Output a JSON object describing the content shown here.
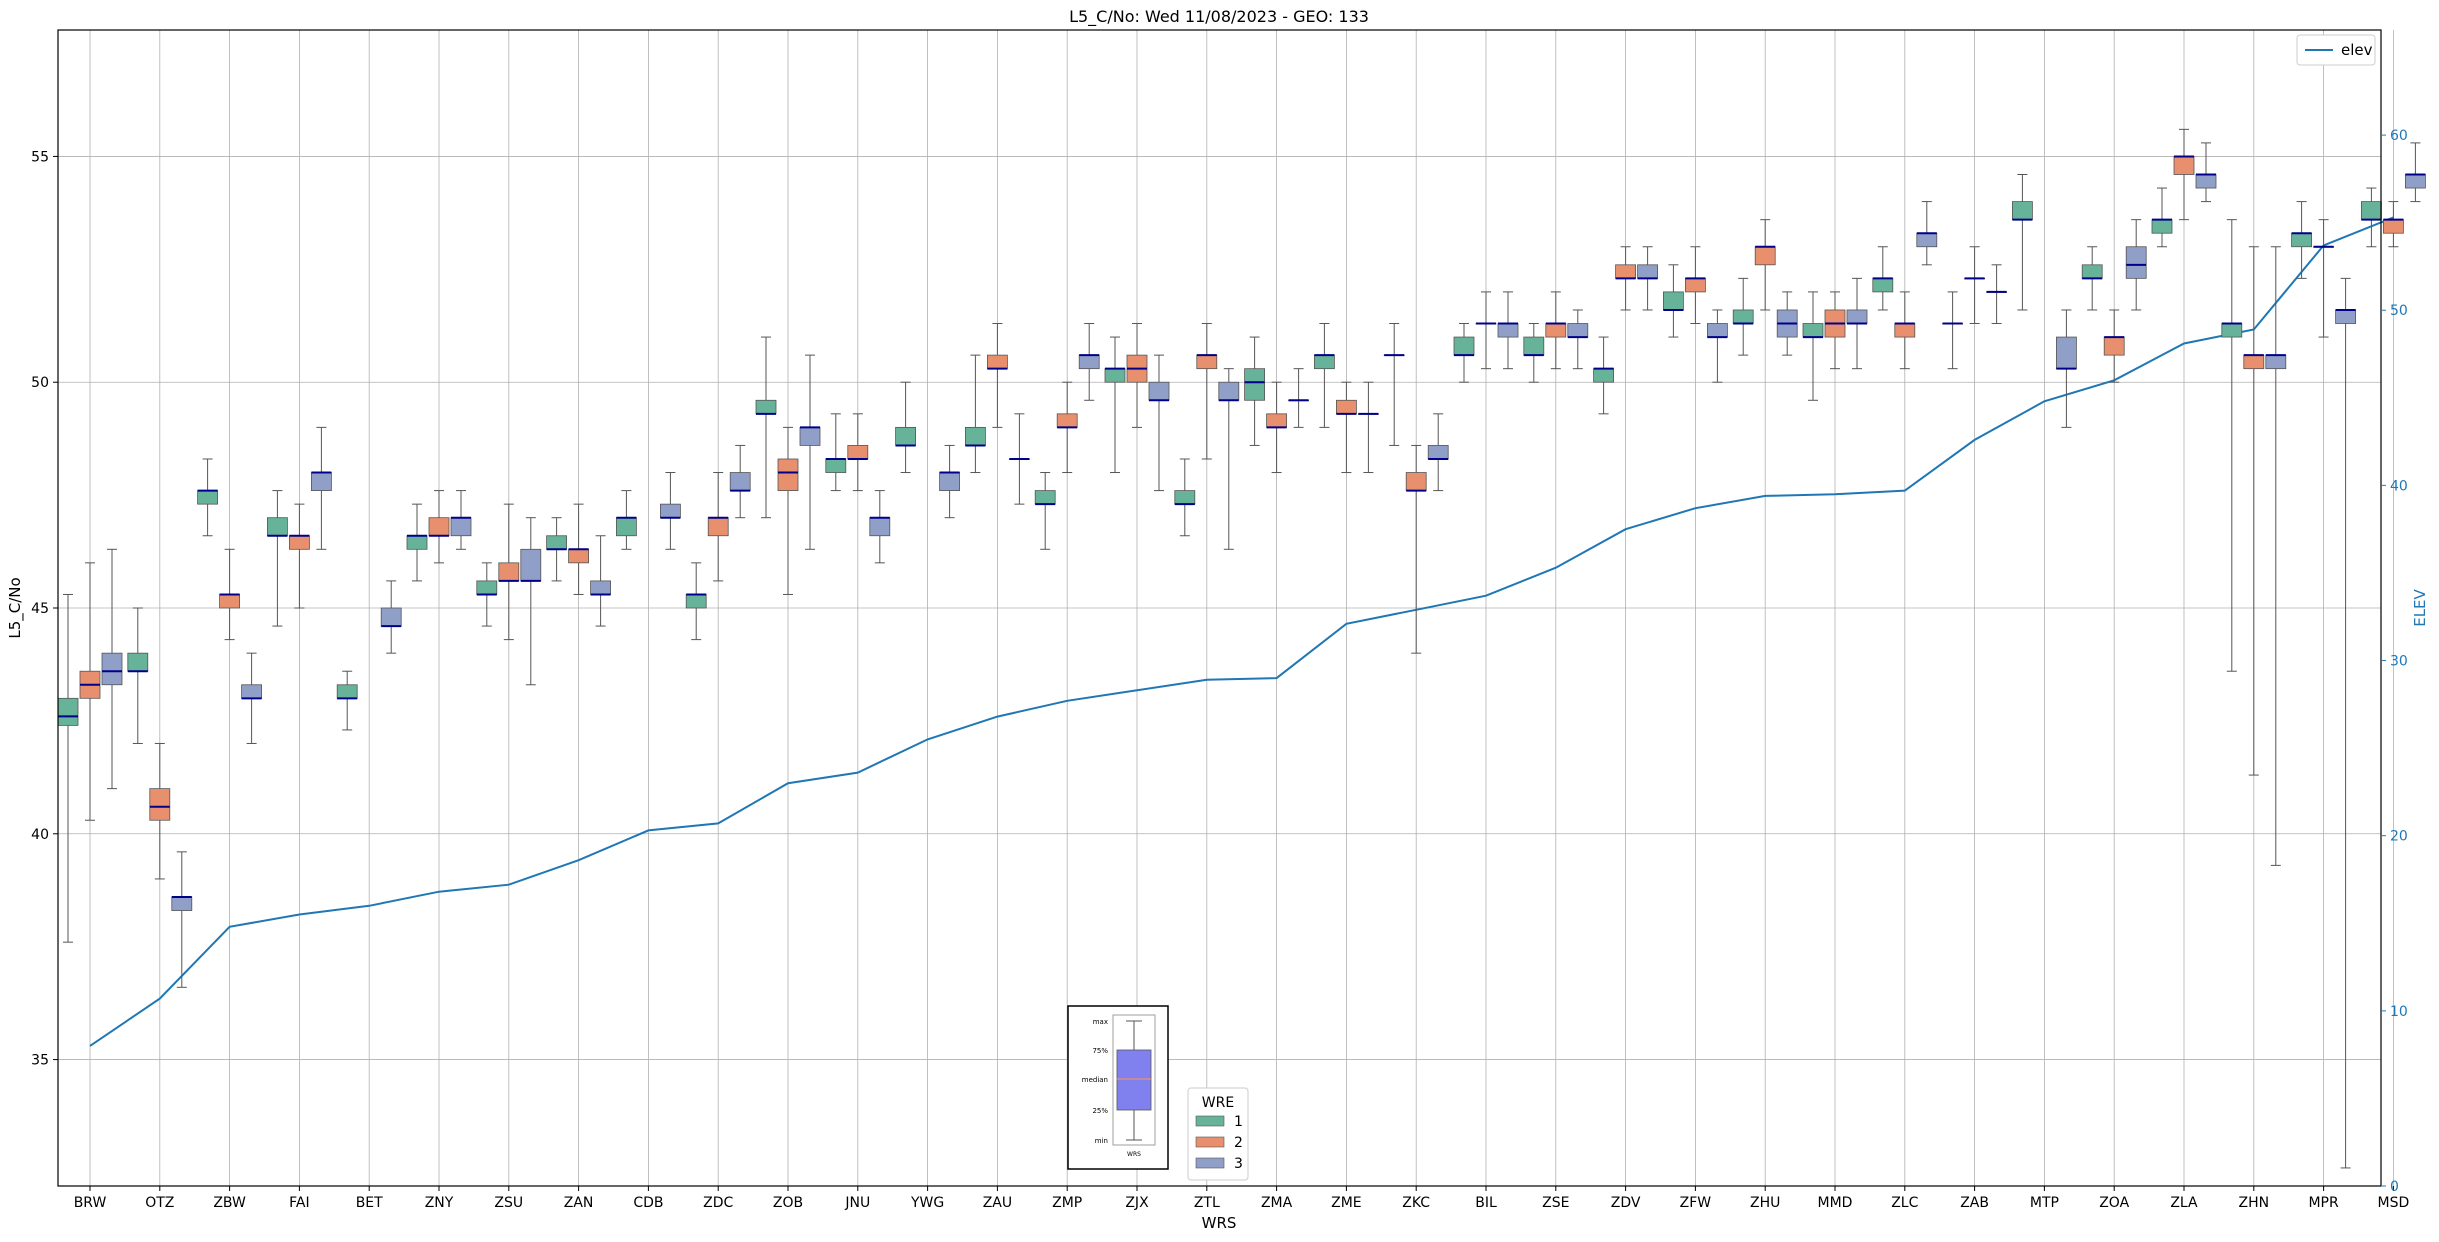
{
  "chart_data": {
    "type": "box",
    "title": "L5_C/No: Wed 11/08/2023 - GEO: 133",
    "xlabel": "WRS",
    "ylabel": "L5_C/No",
    "y2label": "ELEV",
    "ylim": [
      32.2,
      57.8
    ],
    "y2lim": [
      0,
      66
    ],
    "yticks": [
      35,
      40,
      45,
      50,
      55
    ],
    "y2ticks": [
      0,
      10,
      20,
      30,
      40,
      50,
      60
    ],
    "grid": true,
    "categories": [
      "BRW",
      "OTZ",
      "ZBW",
      "FAI",
      "BET",
      "ZNY",
      "ZSU",
      "ZAN",
      "CDB",
      "ZDC",
      "ZOB",
      "JNU",
      "YWG",
      "ZAU",
      "ZMP",
      "ZJX",
      "ZTL",
      "ZMA",
      "ZME",
      "ZKC",
      "BIL",
      "ZSE",
      "ZDV",
      "ZFW",
      "ZHU",
      "MMD",
      "ZLC",
      "ZAB",
      "MTP",
      "ZOA",
      "ZLA",
      "ZHN",
      "MPR",
      "MSD"
    ],
    "hue_legend": {
      "title": "WRE",
      "location": "lower-center",
      "entries": [
        {
          "label": "1",
          "color": "#66b39a"
        },
        {
          "label": "2",
          "color": "#e8906e"
        },
        {
          "label": "3",
          "color": "#8f9fc8"
        }
      ]
    },
    "line_legend": {
      "location": "top-right",
      "label": "elev",
      "color": "#1f77b4"
    },
    "inset_legend": {
      "location": "lower-center",
      "labels": [
        "max",
        "75%",
        "median",
        "25%",
        "min",
        "WRS"
      ]
    },
    "median_color": "#00008b",
    "box_series": [
      {
        "name": "1",
        "color": "#66b39a",
        "boxes": [
          {
            "cat": "BRW",
            "min": 37.6,
            "q1": 42.4,
            "median": 42.6,
            "q3": 43.0,
            "max": 45.3
          },
          {
            "cat": "OTZ",
            "min": 42.0,
            "q1": 43.6,
            "median": 43.6,
            "q3": 44.0,
            "max": 45.0
          },
          {
            "cat": "ZBW",
            "min": 46.6,
            "q1": 47.3,
            "median": 47.6,
            "q3": 47.6,
            "max": 48.3
          },
          {
            "cat": "FAI",
            "min": 44.6,
            "q1": 46.6,
            "median": 46.6,
            "q3": 47.0,
            "max": 47.6
          },
          {
            "cat": "BET",
            "min": 42.3,
            "q1": 43.0,
            "median": 43.0,
            "q3": 43.3,
            "max": 43.6
          },
          {
            "cat": "ZNY",
            "min": 45.6,
            "q1": 46.3,
            "median": 46.6,
            "q3": 46.6,
            "max": 47.3
          },
          {
            "cat": "ZSU",
            "min": 44.6,
            "q1": 45.3,
            "median": 45.3,
            "q3": 45.6,
            "max": 46.0
          },
          {
            "cat": "ZAN",
            "min": 45.6,
            "q1": 46.3,
            "median": 46.3,
            "q3": 46.6,
            "max": 47.0
          },
          {
            "cat": "CDB",
            "min": 46.3,
            "q1": 46.6,
            "median": 47.0,
            "q3": 47.0,
            "max": 47.6
          },
          {
            "cat": "ZDC",
            "min": 44.3,
            "q1": 45.0,
            "median": 45.3,
            "q3": 45.3,
            "max": 46.0
          },
          {
            "cat": "ZOB",
            "min": 47.0,
            "q1": 49.3,
            "median": 49.3,
            "q3": 49.6,
            "max": 51.0
          },
          {
            "cat": "JNU",
            "min": 47.6,
            "q1": 48.0,
            "median": 48.3,
            "q3": 48.3,
            "max": 49.3
          },
          {
            "cat": "YWG",
            "min": 48.0,
            "q1": 48.6,
            "median": 48.6,
            "q3": 49.0,
            "max": 50.0
          },
          {
            "cat": "ZAU",
            "min": 48.0,
            "q1": 48.6,
            "median": 48.6,
            "q3": 49.0,
            "max": 50.6
          },
          {
            "cat": "ZMP",
            "min": 46.3,
            "q1": 47.3,
            "median": 47.3,
            "q3": 47.6,
            "max": 48.0
          },
          {
            "cat": "ZJX",
            "min": 48.0,
            "q1": 50.0,
            "median": 50.3,
            "q3": 50.3,
            "max": 51.0
          },
          {
            "cat": "ZTL",
            "min": 46.6,
            "q1": 47.3,
            "median": 47.3,
            "q3": 47.6,
            "max": 48.3
          },
          {
            "cat": "ZMA",
            "min": 48.6,
            "q1": 49.6,
            "median": 50.0,
            "q3": 50.3,
            "max": 51.0
          },
          {
            "cat": "ZME",
            "min": 49.0,
            "q1": 50.3,
            "median": 50.6,
            "q3": 50.6,
            "max": 51.3
          },
          {
            "cat": "ZKC",
            "min": 48.6,
            "q1": 50.6,
            "median": 50.6,
            "q3": 50.6,
            "max": 51.3
          },
          {
            "cat": "BIL",
            "min": 50.0,
            "q1": 50.6,
            "median": 50.6,
            "q3": 51.0,
            "max": 51.3
          },
          {
            "cat": "ZSE",
            "min": 50.0,
            "q1": 50.6,
            "median": 50.6,
            "q3": 51.0,
            "max": 51.3
          },
          {
            "cat": "ZDV",
            "min": 49.3,
            "q1": 50.0,
            "median": 50.3,
            "q3": 50.3,
            "max": 51.0
          },
          {
            "cat": "ZFW",
            "min": 51.0,
            "q1": 51.6,
            "median": 51.6,
            "q3": 52.0,
            "max": 52.6
          },
          {
            "cat": "ZHU",
            "min": 50.6,
            "q1": 51.3,
            "median": 51.3,
            "q3": 51.6,
            "max": 52.3
          },
          {
            "cat": "MMD",
            "min": 49.6,
            "q1": 51.0,
            "median": 51.0,
            "q3": 51.3,
            "max": 52.0
          },
          {
            "cat": "ZLC",
            "min": 51.6,
            "q1": 52.0,
            "median": 52.3,
            "q3": 52.3,
            "max": 53.0
          },
          {
            "cat": "ZAB",
            "min": 50.3,
            "q1": 51.3,
            "median": 51.3,
            "q3": 51.3,
            "max": 52.0
          },
          {
            "cat": "MTP",
            "min": 51.6,
            "q1": 53.6,
            "median": 53.6,
            "q3": 54.0,
            "max": 54.6
          },
          {
            "cat": "ZOA",
            "min": 51.6,
            "q1": 52.3,
            "median": 52.3,
            "q3": 52.6,
            "max": 53.0
          },
          {
            "cat": "ZLA",
            "min": 53.0,
            "q1": 53.3,
            "median": 53.6,
            "q3": 53.6,
            "max": 54.3
          },
          {
            "cat": "ZHN",
            "min": 43.6,
            "q1": 51.0,
            "median": 51.3,
            "q3": 51.3,
            "max": 53.6
          },
          {
            "cat": "MPR",
            "min": 52.3,
            "q1": 53.0,
            "median": 53.3,
            "q3": 53.3,
            "max": 54.0
          },
          {
            "cat": "MSD",
            "min": 53.0,
            "q1": 53.6,
            "median": 53.6,
            "q3": 54.0,
            "max": 54.3
          }
        ]
      },
      {
        "name": "2",
        "color": "#e8906e",
        "boxes": [
          {
            "cat": "BRW",
            "min": 40.3,
            "q1": 43.0,
            "median": 43.3,
            "q3": 43.6,
            "max": 46.0
          },
          {
            "cat": "OTZ",
            "min": 39.0,
            "q1": 40.3,
            "median": 40.6,
            "q3": 41.0,
            "max": 42.0
          },
          {
            "cat": "ZBW",
            "min": 44.3,
            "q1": 45.0,
            "median": 45.3,
            "q3": 45.3,
            "max": 46.3
          },
          {
            "cat": "FAI",
            "min": 45.0,
            "q1": 46.3,
            "median": 46.6,
            "q3": 46.6,
            "max": 47.3
          },
          {
            "cat": "ZNY",
            "min": 46.0,
            "q1": 46.6,
            "median": 46.6,
            "q3": 47.0,
            "max": 47.6
          },
          {
            "cat": "ZSU",
            "min": 44.3,
            "q1": 45.6,
            "median": 45.6,
            "q3": 46.0,
            "max": 47.3
          },
          {
            "cat": "ZAN",
            "min": 45.3,
            "q1": 46.0,
            "median": 46.3,
            "q3": 46.3,
            "max": 47.3
          },
          {
            "cat": "ZDC",
            "min": 45.6,
            "q1": 46.6,
            "median": 47.0,
            "q3": 47.0,
            "max": 48.0
          },
          {
            "cat": "ZOB",
            "min": 45.3,
            "q1": 47.6,
            "median": 48.0,
            "q3": 48.3,
            "max": 49.0
          },
          {
            "cat": "JNU",
            "min": 47.6,
            "q1": 48.3,
            "median": 48.3,
            "q3": 48.6,
            "max": 49.3
          },
          {
            "cat": "ZAU",
            "min": 49.0,
            "q1": 50.3,
            "median": 50.3,
            "q3": 50.6,
            "max": 51.3
          },
          {
            "cat": "ZMP",
            "min": 48.0,
            "q1": 49.0,
            "median": 49.0,
            "q3": 49.3,
            "max": 50.0
          },
          {
            "cat": "ZJX",
            "min": 49.0,
            "q1": 50.0,
            "median": 50.3,
            "q3": 50.6,
            "max": 51.3
          },
          {
            "cat": "ZTL",
            "min": 48.3,
            "q1": 50.3,
            "median": 50.6,
            "q3": 50.6,
            "max": 51.3
          },
          {
            "cat": "ZMA",
            "min": 48.0,
            "q1": 49.0,
            "median": 49.0,
            "q3": 49.3,
            "max": 50.0
          },
          {
            "cat": "ZME",
            "min": 48.0,
            "q1": 49.3,
            "median": 49.3,
            "q3": 49.6,
            "max": 50.0
          },
          {
            "cat": "ZKC",
            "min": 44.0,
            "q1": 47.6,
            "median": 47.6,
            "q3": 48.0,
            "max": 48.6
          },
          {
            "cat": "BIL",
            "min": 50.3,
            "q1": 51.3,
            "median": 51.3,
            "q3": 51.3,
            "max": 52.0
          },
          {
            "cat": "ZSE",
            "min": 50.3,
            "q1": 51.0,
            "median": 51.3,
            "q3": 51.3,
            "max": 52.0
          },
          {
            "cat": "ZDV",
            "min": 51.6,
            "q1": 52.3,
            "median": 52.3,
            "q3": 52.6,
            "max": 53.0
          },
          {
            "cat": "ZFW",
            "min": 51.3,
            "q1": 52.0,
            "median": 52.3,
            "q3": 52.3,
            "max": 53.0
          },
          {
            "cat": "ZHU",
            "min": 51.6,
            "q1": 52.6,
            "median": 53.0,
            "q3": 53.0,
            "max": 53.6
          },
          {
            "cat": "MMD",
            "min": 50.3,
            "q1": 51.0,
            "median": 51.3,
            "q3": 51.6,
            "max": 52.0
          },
          {
            "cat": "ZLC",
            "min": 50.3,
            "q1": 51.0,
            "median": 51.3,
            "q3": 51.3,
            "max": 52.0
          },
          {
            "cat": "ZAB",
            "min": 51.3,
            "q1": 52.3,
            "median": 52.3,
            "q3": 52.3,
            "max": 53.0
          },
          {
            "cat": "ZOA",
            "min": 50.0,
            "q1": 50.6,
            "median": 51.0,
            "q3": 51.0,
            "max": 51.6
          },
          {
            "cat": "ZLA",
            "min": 53.6,
            "q1": 54.6,
            "median": 55.0,
            "q3": 55.0,
            "max": 55.6
          },
          {
            "cat": "ZHN",
            "min": 41.3,
            "q1": 50.3,
            "median": 50.6,
            "q3": 50.6,
            "max": 53.0
          },
          {
            "cat": "MPR",
            "min": 51.0,
            "q1": 53.0,
            "median": 53.0,
            "q3": 53.0,
            "max": 53.6
          },
          {
            "cat": "MSD",
            "min": 53.0,
            "q1": 53.3,
            "median": 53.6,
            "q3": 53.6,
            "max": 54.0
          }
        ]
      },
      {
        "name": "3",
        "color": "#8f9fc8",
        "boxes": [
          {
            "cat": "BRW",
            "min": 41.0,
            "q1": 43.3,
            "median": 43.6,
            "q3": 44.0,
            "max": 46.3
          },
          {
            "cat": "OTZ",
            "min": 36.6,
            "q1": 38.3,
            "median": 38.6,
            "q3": 38.6,
            "max": 39.6
          },
          {
            "cat": "ZBW",
            "min": 42.0,
            "q1": 43.0,
            "median": 43.0,
            "q3": 43.3,
            "max": 44.0
          },
          {
            "cat": "FAI",
            "min": 46.3,
            "q1": 47.6,
            "median": 48.0,
            "q3": 48.0,
            "max": 49.0
          },
          {
            "cat": "BET",
            "min": 44.0,
            "q1": 44.6,
            "median": 44.6,
            "q3": 45.0,
            "max": 45.6
          },
          {
            "cat": "ZNY",
            "min": 46.3,
            "q1": 46.6,
            "median": 47.0,
            "q3": 47.0,
            "max": 47.6
          },
          {
            "cat": "ZSU",
            "min": 43.3,
            "q1": 45.6,
            "median": 45.6,
            "q3": 46.3,
            "max": 47.0
          },
          {
            "cat": "ZAN",
            "min": 44.6,
            "q1": 45.3,
            "median": 45.3,
            "q3": 45.6,
            "max": 46.6
          },
          {
            "cat": "CDB",
            "min": 46.3,
            "q1": 47.0,
            "median": 47.0,
            "q3": 47.3,
            "max": 48.0
          },
          {
            "cat": "ZDC",
            "min": 47.0,
            "q1": 47.6,
            "median": 47.6,
            "q3": 48.0,
            "max": 48.6
          },
          {
            "cat": "ZOB",
            "min": 46.3,
            "q1": 48.6,
            "median": 49.0,
            "q3": 49.0,
            "max": 50.6
          },
          {
            "cat": "JNU",
            "min": 46.0,
            "q1": 46.6,
            "median": 47.0,
            "q3": 47.0,
            "max": 47.6
          },
          {
            "cat": "YWG",
            "min": 47.0,
            "q1": 47.6,
            "median": 48.0,
            "q3": 48.0,
            "max": 48.6
          },
          {
            "cat": "ZAU",
            "min": 47.3,
            "q1": 48.3,
            "median": 48.3,
            "q3": 48.3,
            "max": 49.3
          },
          {
            "cat": "ZMP",
            "min": 49.6,
            "q1": 50.3,
            "median": 50.6,
            "q3": 50.6,
            "max": 51.3
          },
          {
            "cat": "ZJX",
            "min": 47.6,
            "q1": 49.6,
            "median": 49.6,
            "q3": 50.0,
            "max": 50.6
          },
          {
            "cat": "ZTL",
            "min": 46.3,
            "q1": 49.6,
            "median": 49.6,
            "q3": 50.0,
            "max": 50.3
          },
          {
            "cat": "ZMA",
            "min": 49.0,
            "q1": 49.6,
            "median": 49.6,
            "q3": 49.6,
            "max": 50.3
          },
          {
            "cat": "ZME",
            "min": 48.0,
            "q1": 49.3,
            "median": 49.3,
            "q3": 49.3,
            "max": 50.0
          },
          {
            "cat": "ZKC",
            "min": 47.6,
            "q1": 48.3,
            "median": 48.3,
            "q3": 48.6,
            "max": 49.3
          },
          {
            "cat": "BIL",
            "min": 50.3,
            "q1": 51.0,
            "median": 51.3,
            "q3": 51.3,
            "max": 52.0
          },
          {
            "cat": "ZSE",
            "min": 50.3,
            "q1": 51.0,
            "median": 51.0,
            "q3": 51.3,
            "max": 51.6
          },
          {
            "cat": "ZDV",
            "min": 51.6,
            "q1": 52.3,
            "median": 52.3,
            "q3": 52.6,
            "max": 53.0
          },
          {
            "cat": "ZFW",
            "min": 50.0,
            "q1": 51.0,
            "median": 51.0,
            "q3": 51.3,
            "max": 51.6
          },
          {
            "cat": "ZHU",
            "min": 50.6,
            "q1": 51.0,
            "median": 51.3,
            "q3": 51.6,
            "max": 52.0
          },
          {
            "cat": "MMD",
            "min": 50.3,
            "q1": 51.3,
            "median": 51.3,
            "q3": 51.6,
            "max": 52.3
          },
          {
            "cat": "ZLC",
            "min": 52.6,
            "q1": 53.0,
            "median": 53.3,
            "q3": 53.3,
            "max": 54.0
          },
          {
            "cat": "ZAB",
            "min": 51.3,
            "q1": 52.0,
            "median": 52.0,
            "q3": 52.0,
            "max": 52.6
          },
          {
            "cat": "MTP",
            "min": 49.0,
            "q1": 50.3,
            "median": 50.3,
            "q3": 51.0,
            "max": 51.6
          },
          {
            "cat": "ZOA",
            "min": 51.6,
            "q1": 52.3,
            "median": 52.6,
            "q3": 53.0,
            "max": 53.6
          },
          {
            "cat": "ZLA",
            "min": 54.0,
            "q1": 54.3,
            "median": 54.6,
            "q3": 54.6,
            "max": 55.3
          },
          {
            "cat": "ZHN",
            "min": 39.3,
            "q1": 50.3,
            "median": 50.6,
            "q3": 50.6,
            "max": 53.0
          },
          {
            "cat": "MPR",
            "min": 32.6,
            "q1": 51.3,
            "median": 51.6,
            "q3": 51.6,
            "max": 52.3
          },
          {
            "cat": "MSD",
            "min": 54.0,
            "q1": 54.3,
            "median": 54.6,
            "q3": 54.6,
            "max": 55.3
          }
        ]
      }
    ],
    "line_series": {
      "name": "elev",
      "color": "#1f77b4",
      "axis": "right",
      "values": [
        8.0,
        10.7,
        14.8,
        15.5,
        16.0,
        16.8,
        17.2,
        18.6,
        20.3,
        20.7,
        23.0,
        23.6,
        25.5,
        26.8,
        27.7,
        28.3,
        28.9,
        29.0,
        32.1,
        32.9,
        33.7,
        35.3,
        37.5,
        38.7,
        39.4,
        39.5,
        39.7,
        42.6,
        44.8,
        46.0,
        48.1,
        48.9,
        53.7,
        55.3
      ]
    }
  }
}
